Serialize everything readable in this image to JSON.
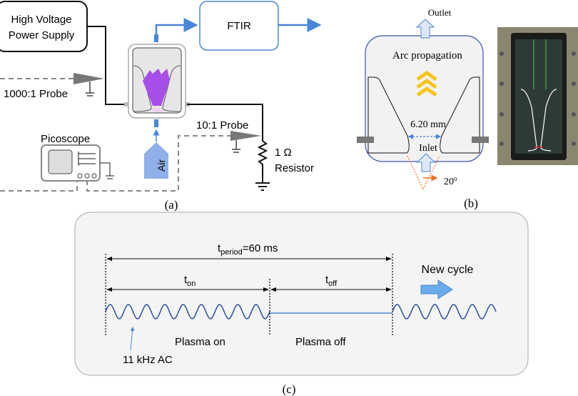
{
  "panel_a": {
    "power_supply": [
      "High Voltage",
      "Power Supply"
    ],
    "ftir": "FTIR",
    "probe_hv": "1000:1 Probe",
    "probe_low": "10:1 Probe",
    "scope": "Picoscope",
    "air": "Air",
    "resistor_value": "1 Ω",
    "resistor": "Resistor",
    "caption": "(a)"
  },
  "panel_b": {
    "outlet": "Outlet",
    "arc": "Arc propagation",
    "gap": "6.20 mm",
    "inlet": "Inlet",
    "angle": "20",
    "angle_unit": "o",
    "caption": "(b)"
  },
  "panel_c": {
    "period_t": "t",
    "period_sub": "period",
    "period_val": "=60 ms",
    "ton_t": "t",
    "ton_sub": "on",
    "toff_t": "t",
    "toff_sub": "off",
    "new_cycle": "New cycle",
    "plasma_on": "Plasma on",
    "plasma_off": "Plasma off",
    "ac": "11 kHz AC",
    "caption": "(c)"
  },
  "colors": {
    "blue": "#4a86d8",
    "purple": "#a64ee8",
    "yellow": "#f5c518",
    "orange": "#f07020",
    "wave": "#2a4fa0"
  }
}
